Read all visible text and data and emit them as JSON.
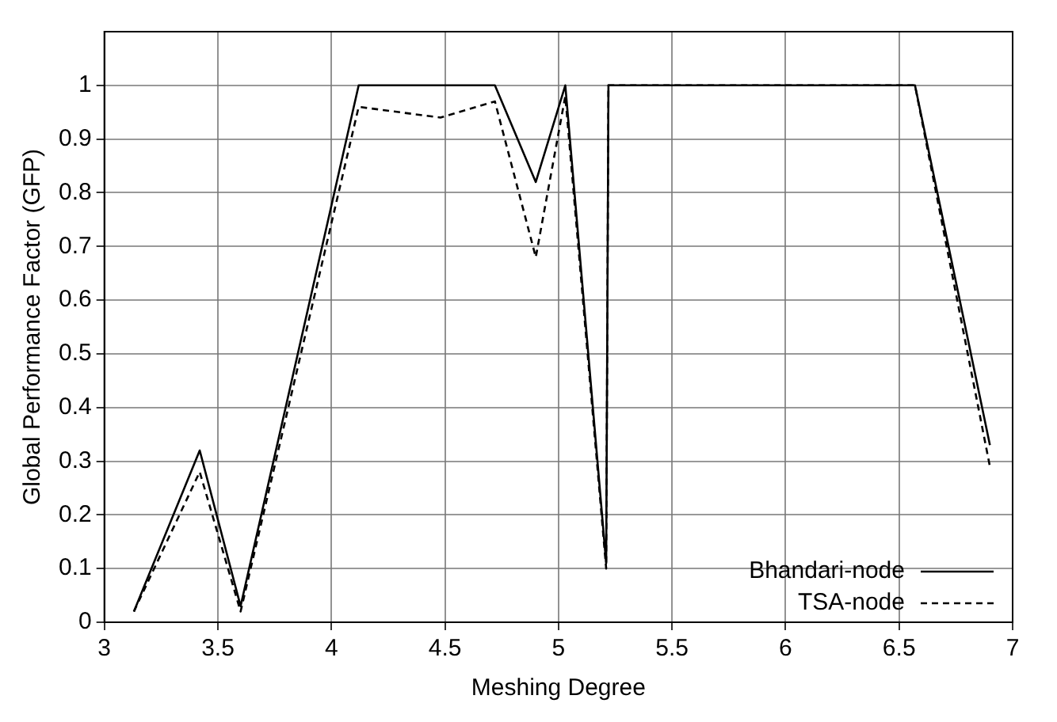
{
  "chart_data": {
    "type": "line",
    "xlabel": "Meshing Degree",
    "ylabel": "Global Performance Factor (GFP)",
    "xlim": [
      3,
      7
    ],
    "xticks": [
      3,
      3.5,
      4,
      4.5,
      5,
      5.5,
      6,
      6.5,
      7
    ],
    "ylim": [
      0,
      1.1
    ],
    "yticks": [
      0,
      0.1,
      0.2,
      0.3,
      0.4,
      0.5,
      0.6,
      0.7,
      0.8,
      0.9,
      1
    ],
    "grid": true,
    "legend": "bottom right",
    "marker": "none",
    "series": [
      {
        "name": "Bhandari-node",
        "color": "#000000",
        "line_style": "solid",
        "x": [
          3.13,
          3.42,
          3.6,
          4.12,
          4.72,
          4.9,
          5.03,
          5.21,
          5.22,
          6.57,
          6.9
        ],
        "values": [
          0.02,
          0.32,
          0.03,
          1,
          1,
          0.82,
          1,
          0.11,
          1,
          1,
          0.33
        ]
      },
      {
        "name": "TSA-node",
        "color": "#000000",
        "line_style": "dashed",
        "x": [
          3.13,
          3.42,
          3.6,
          4.12,
          4.48,
          4.72,
          4.9,
          5.03,
          5.21,
          5.22,
          6.57,
          6.9
        ],
        "values": [
          0.02,
          0.28,
          0.02,
          0.96,
          0.94,
          0.97,
          0.68,
          0.98,
          0.1,
          1,
          1,
          0.29
        ]
      }
    ]
  }
}
